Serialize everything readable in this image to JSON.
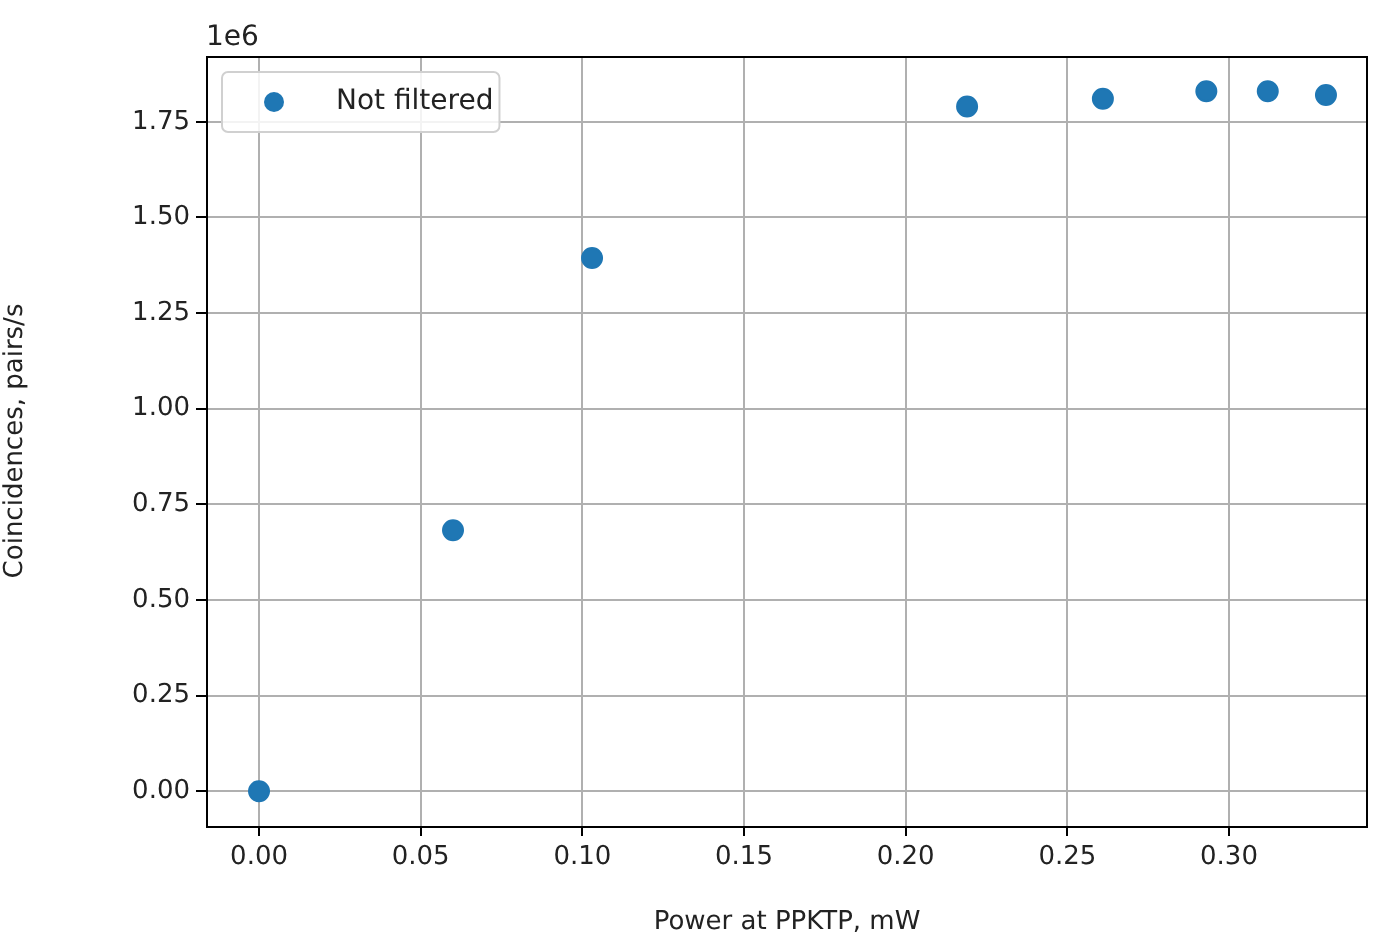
{
  "chart_data": {
    "type": "scatter",
    "xlabel": "Power at PPKTP, mW",
    "ylabel": "Coincidences, pairs/s",
    "annotations": [
      "1e6"
    ],
    "x": [
      0,
      0.06,
      0.103,
      0.219,
      0.261,
      0.293,
      0.312,
      0.33
    ],
    "series": [
      {
        "name": "Not filtered",
        "color": "#1f77b4",
        "values": [
          0,
          0.682,
          1.394,
          1.79,
          1.81,
          1.83,
          1.83,
          1.82
        ]
      }
    ],
    "xlim": [
      -0.0164,
      0.343
    ],
    "xticks": [
      {
        "value": 0,
        "label": "0.00"
      },
      {
        "value": 0.05,
        "label": "0.05"
      },
      {
        "value": 0.1,
        "label": "0.10"
      },
      {
        "value": 0.15,
        "label": "0.15"
      },
      {
        "value": 0.2,
        "label": "0.20"
      },
      {
        "value": 0.25,
        "label": "0.25"
      },
      {
        "value": 0.3,
        "label": "0.30"
      }
    ],
    "ylim": [
      -0.091,
      1.922
    ],
    "yticks": [
      {
        "value": 0,
        "label": "0.00"
      },
      {
        "value": 0.25,
        "label": "0.25"
      },
      {
        "value": 0.5,
        "label": "0.50"
      },
      {
        "value": 0.75,
        "label": "0.75"
      },
      {
        "value": 1,
        "label": "1.00"
      },
      {
        "value": 1.25,
        "label": "1.25"
      },
      {
        "value": 1.5,
        "label": "1.50"
      },
      {
        "value": 1.75,
        "label": "1.75"
      }
    ],
    "grid": true,
    "legend": "top left",
    "marker": "circle"
  }
}
